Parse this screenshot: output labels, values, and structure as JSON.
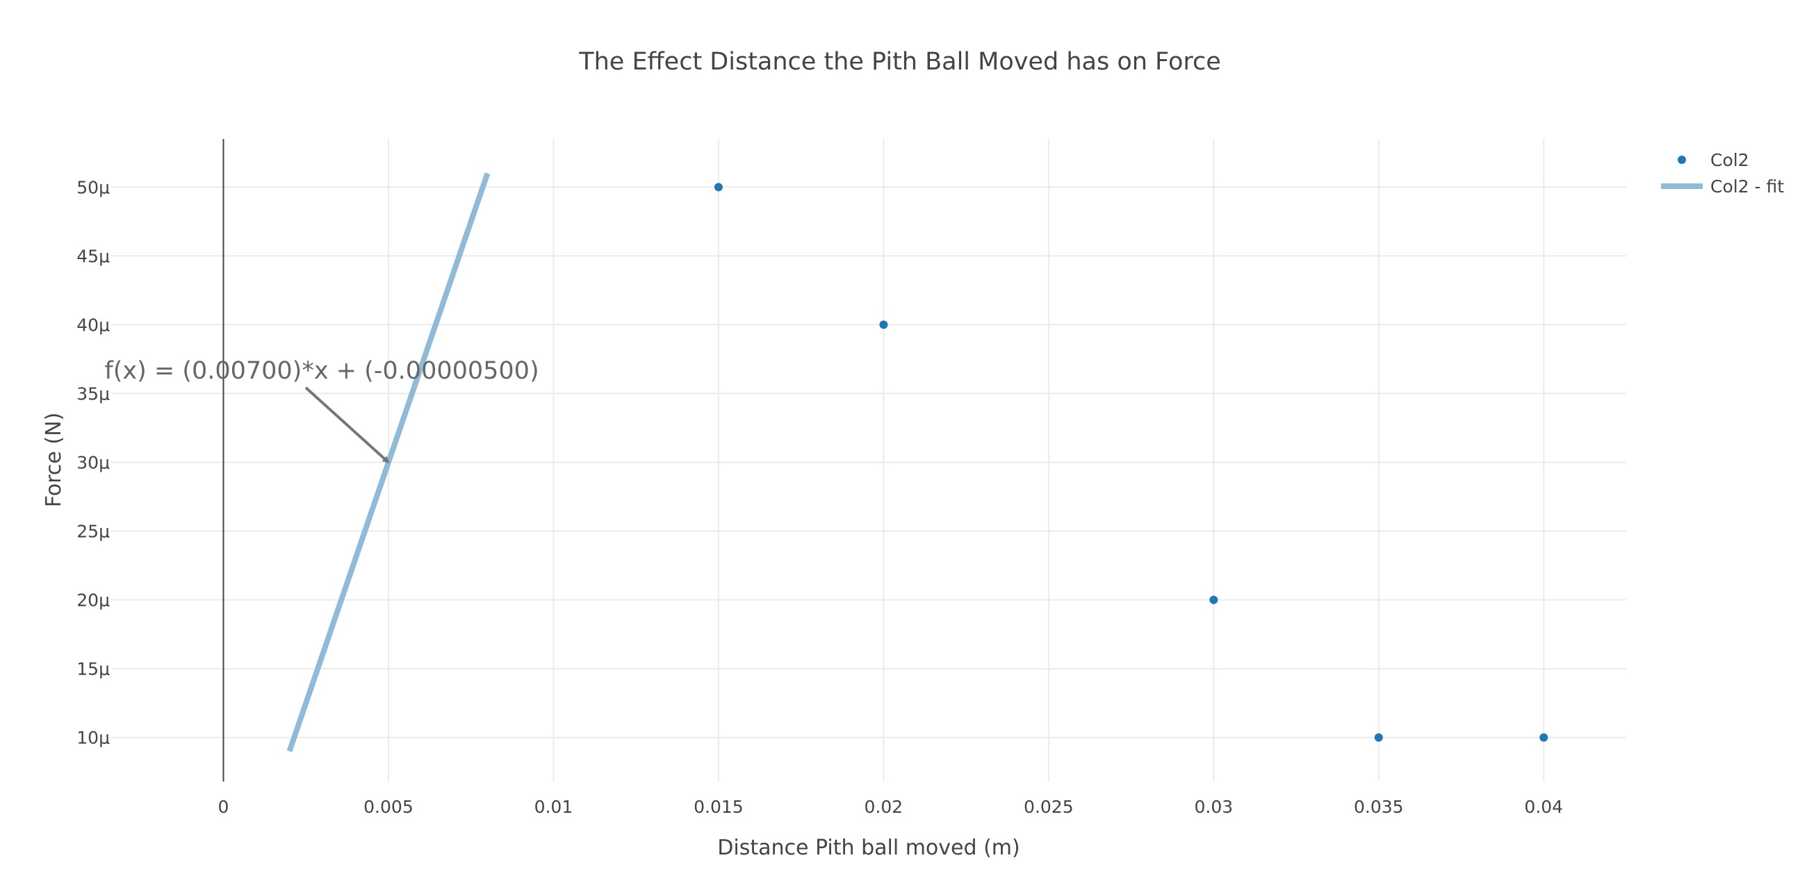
{
  "chart_data": {
    "type": "scatter",
    "title": "The Effect Distance the Pith Ball Moved has on Force",
    "xlabel": "Distance Pith ball moved (m)",
    "ylabel": "Force (N)",
    "xlim": [
      -0.0034,
      0.0425
    ],
    "ylim": [
      6.8e-06,
      5.35e-05
    ],
    "x_ticks": [
      0,
      0.005,
      0.01,
      0.015,
      0.02,
      0.025,
      0.03,
      0.035,
      0.04
    ],
    "x_tick_labels": [
      "0",
      "0.005",
      "0.01",
      "0.015",
      "0.02",
      "0.025",
      "0.03",
      "0.035",
      "0.04"
    ],
    "y_ticks": [
      1e-05,
      1.5e-05,
      2e-05,
      2.5e-05,
      3e-05,
      3.5e-05,
      4e-05,
      4.5e-05,
      5e-05
    ],
    "y_tick_labels": [
      "10μ",
      "15μ",
      "20μ",
      "25μ",
      "30μ",
      "35μ",
      "40μ",
      "45μ",
      "50μ"
    ],
    "grid": true,
    "legend_position": "top-right",
    "series": [
      {
        "name": "Col2",
        "mode": "markers",
        "color": "#1f77b4",
        "x": [
          0.015,
          0.02,
          0.03,
          0.035,
          0.04
        ],
        "y": [
          5e-05,
          4e-05,
          2e-05,
          1e-05,
          1e-05
        ]
      },
      {
        "name": "Col2 - fit",
        "mode": "line",
        "color": "#8fbbd9",
        "x": [
          0.002,
          0.008
        ],
        "y": [
          9e-06,
          5.1e-05
        ]
      }
    ],
    "annotations": [
      {
        "text": "f(x) = (0.00700)*x + (-0.00000500)",
        "arrow_x": 0.005,
        "arrow_y": 3e-05
      }
    ]
  }
}
